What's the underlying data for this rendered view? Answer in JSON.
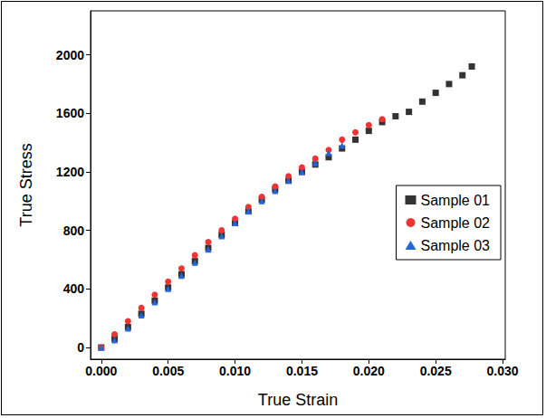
{
  "chart_data": {
    "type": "scatter",
    "x_label": "True Strain",
    "y_label": "True Stress",
    "xlim": [
      -0.0008,
      0.0302
    ],
    "ylim": [
      -80,
      2300
    ],
    "xticks": [
      {
        "value": 0,
        "label": "0.000"
      },
      {
        "value": 0.005,
        "label": "0.005"
      },
      {
        "value": 0.01,
        "label": "0.010"
      },
      {
        "value": 0.015,
        "label": "0.015"
      },
      {
        "value": 0.02,
        "label": "0.020"
      },
      {
        "value": 0.025,
        "label": "0.025"
      },
      {
        "value": 0.03,
        "label": "0.030"
      }
    ],
    "yticks": [
      0,
      400,
      800,
      1200,
      1600,
      2000
    ],
    "grid": false,
    "legend": "right",
    "series": [
      {
        "name": "Sample 01",
        "color": "#333333",
        "marker": "square",
        "x": [
          0,
          0.001,
          0.002,
          0.003,
          0.004,
          0.005,
          0.006,
          0.007,
          0.008,
          0.009,
          0.01,
          0.011,
          0.012,
          0.013,
          0.014,
          0.015,
          0.016,
          0.017,
          0.018,
          0.019,
          0.02,
          0.021,
          0.022,
          0.023,
          0.024,
          0.025,
          0.026,
          0.027,
          0.0277
        ],
        "values": [
          0,
          60,
          140,
          230,
          320,
          410,
          500,
          590,
          680,
          770,
          850,
          930,
          1010,
          1080,
          1140,
          1200,
          1250,
          1300,
          1360,
          1420,
          1480,
          1540,
          1580,
          1610,
          1680,
          1740,
          1800,
          1860,
          1920
        ]
      },
      {
        "name": "Sample 02",
        "color": "#ee3333",
        "marker": "circle",
        "x": [
          0,
          0.001,
          0.002,
          0.003,
          0.004,
          0.005,
          0.006,
          0.007,
          0.008,
          0.009,
          0.01,
          0.011,
          0.012,
          0.013,
          0.014,
          0.015,
          0.016,
          0.017,
          0.018,
          0.019,
          0.02,
          0.021
        ],
        "values": [
          0,
          90,
          180,
          270,
          360,
          450,
          540,
          630,
          720,
          800,
          880,
          960,
          1030,
          1100,
          1170,
          1230,
          1290,
          1350,
          1420,
          1470,
          1520,
          1560
        ]
      },
      {
        "name": "Sample 03",
        "color": "#2266dd",
        "marker": "triangle",
        "x": [
          0,
          0.001,
          0.002,
          0.003,
          0.004,
          0.005,
          0.006,
          0.007,
          0.008,
          0.009,
          0.01,
          0.011,
          0.012,
          0.013,
          0.014,
          0.015,
          0.016,
          0.017,
          0.018
        ],
        "values": [
          0,
          50,
          130,
          220,
          310,
          400,
          490,
          580,
          670,
          760,
          850,
          930,
          1000,
          1070,
          1140,
          1200,
          1260,
          1330,
          1380
        ]
      }
    ]
  }
}
